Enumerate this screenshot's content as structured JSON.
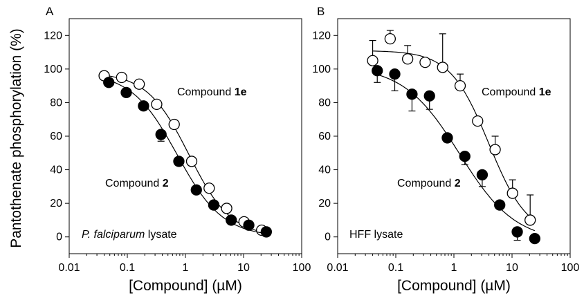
{
  "shared": {
    "ylabel": "Pantothenate phosphorylation (%)"
  },
  "chart_data": [
    {
      "type": "scatter",
      "panel_letter": "A",
      "xlabel": "[Compound] (µM)",
      "x_scale": "log",
      "xlim": [
        0.01,
        100
      ],
      "ylim": [
        -10,
        130
      ],
      "x_ticks": [
        0.01,
        0.1,
        1,
        10,
        100
      ],
      "x_tick_labels": [
        "0.01",
        "0.1",
        "1",
        "10",
        "100"
      ],
      "y_ticks": [
        0,
        20,
        40,
        60,
        80,
        100,
        120
      ],
      "y_tick_labels": [
        "0",
        "20",
        "40",
        "60",
        "80",
        "100",
        "120"
      ],
      "grid": false,
      "inset_label": {
        "italic": "P. falciparum",
        "normal": " lysate"
      },
      "series": [
        {
          "name_prefix": "Compound ",
          "name_bold": "1e",
          "marker": "open-circle",
          "x": [
            0.04,
            0.08,
            0.16,
            0.32,
            0.64,
            1.28,
            2.56,
            5.12,
            10.2,
            20.5
          ],
          "y": [
            96,
            95,
            91,
            79,
            67,
            45,
            29,
            17,
            9,
            4
          ],
          "fit": {
            "top": 98,
            "bottom": 0,
            "ic50": 1.15,
            "hill": 1.2
          }
        },
        {
          "name_prefix": "Compound ",
          "name_bold": "2",
          "marker": "filled-circle",
          "x": [
            0.048,
            0.096,
            0.19,
            0.38,
            0.77,
            1.54,
            3.07,
            6.14,
            12.3,
            24.6
          ],
          "y": [
            92,
            86,
            78,
            61,
            45,
            28,
            19,
            10,
            7,
            3
          ],
          "err": [
            0,
            0,
            0,
            4,
            0,
            0,
            0,
            0,
            0,
            0
          ],
          "fit": {
            "top": 98,
            "bottom": 0,
            "ic50": 0.72,
            "hill": 1.1
          }
        }
      ]
    },
    {
      "type": "scatter",
      "panel_letter": "B",
      "xlabel": "[Compound] (µM)",
      "x_scale": "log",
      "xlim": [
        0.01,
        100
      ],
      "ylim": [
        -10,
        130
      ],
      "x_ticks": [
        0.01,
        0.1,
        1,
        10,
        100
      ],
      "x_tick_labels": [
        "0.01",
        "0.1",
        "1",
        "10",
        "100"
      ],
      "y_ticks": [
        0,
        20,
        40,
        60,
        80,
        100,
        120
      ],
      "y_tick_labels": [
        "0",
        "20",
        "40",
        "60",
        "80",
        "100",
        "120"
      ],
      "grid": false,
      "inset_label": {
        "italic": "",
        "normal": "HFF lysate"
      },
      "series": [
        {
          "name_prefix": "Compound ",
          "name_bold": "1e",
          "marker": "open-circle",
          "x": [
            0.04,
            0.08,
            0.16,
            0.32,
            0.64,
            1.28,
            2.56,
            5.12,
            10.2,
            20.5
          ],
          "y": [
            105,
            118,
            106,
            104,
            101,
            90,
            69,
            52,
            26,
            10
          ],
          "err": [
            12,
            5,
            8,
            0,
            20,
            7,
            0,
            8,
            8,
            15
          ],
          "fit": {
            "top": 111,
            "bottom": 0,
            "ic50": 4.0,
            "hill": 1.3
          }
        },
        {
          "name_prefix": "Compound ",
          "name_bold": "2",
          "marker": "filled-circle",
          "x": [
            0.048,
            0.096,
            0.19,
            0.38,
            0.77,
            1.54,
            3.07,
            6.14,
            12.3,
            24.6
          ],
          "y": [
            99,
            97,
            85,
            84,
            59,
            48,
            37,
            19,
            3,
            -1
          ],
          "err": [
            7,
            10,
            10,
            8,
            0,
            5,
            7,
            0,
            5,
            0
          ],
          "fit": {
            "top": 102,
            "bottom": -3,
            "ic50": 1.25,
            "hill": 0.9
          }
        }
      ]
    }
  ]
}
